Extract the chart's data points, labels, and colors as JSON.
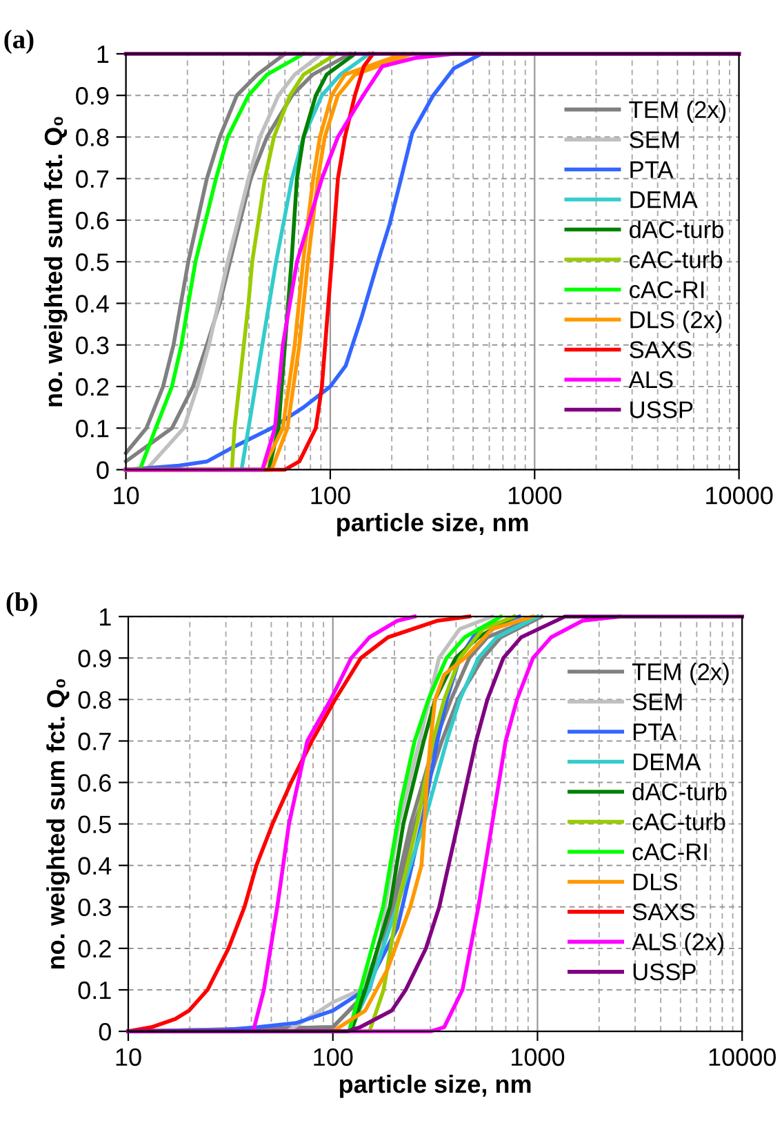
{
  "chart_data": [
    {
      "type": "line",
      "title": "(a)",
      "xlabel": "particle size, nm",
      "ylabel": "no. weighted sum fct. Q₀",
      "log": "x",
      "xlim": [
        10,
        10000
      ],
      "ylim": [
        0,
        1
      ],
      "xticks": [
        10,
        100,
        1000,
        10000
      ],
      "yticks": [
        0,
        0.1,
        0.2,
        0.3,
        0.4,
        0.5,
        0.6,
        0.7,
        0.8,
        0.9,
        1
      ],
      "grid": true,
      "legend": "right",
      "line_style": "solid",
      "marker": "none",
      "series": [
        {
          "name": "TEM (2x)",
          "color": "#808080",
          "x": [
            10,
            12.6,
            15.2,
            17.1,
            20.2,
            24.9,
            28.8,
            34.9,
            44,
            60
          ],
          "values": [
            0.04,
            0.1,
            0.2,
            0.3,
            0.5,
            0.7,
            0.8,
            0.9,
            0.95,
            1
          ]
        },
        {
          "color": "#808080",
          "x": [
            10,
            16.8,
            21.3,
            24.9,
            28.8,
            32.3,
            40.8,
            49,
            65,
            82,
            125
          ],
          "values": [
            0.02,
            0.1,
            0.2,
            0.3,
            0.4,
            0.5,
            0.7,
            0.8,
            0.9,
            0.95,
            1
          ]
        },
        {
          "name": "SEM",
          "color": "#c0c0c0",
          "x": [
            10,
            12.6,
            19.2,
            22.4,
            25.5,
            31.5,
            39.8,
            45.3,
            55.8,
            67,
            91
          ],
          "values": [
            0,
            0,
            0.1,
            0.2,
            0.3,
            0.5,
            0.7,
            0.8,
            0.9,
            0.95,
            1
          ]
        },
        {
          "name": "PTA",
          "color": "#3366ff",
          "x": [
            10,
            18.2,
            25,
            32.3,
            51.6,
            74,
            100,
            119,
            143,
            171,
            195,
            222,
            252,
            319,
            403,
            550
          ],
          "values": [
            0,
            0.01,
            0.02,
            0.05,
            0.1,
            0.15,
            0.2,
            0.25,
            0.37,
            0.5,
            0.59,
            0.7,
            0.81,
            0.9,
            0.965,
            1
          ]
        },
        {
          "name": "DEMA",
          "color": "#33cccc",
          "x": [
            10,
            36.8,
            39.8,
            43,
            46.5,
            54.3,
            65,
            74,
            91,
            112,
            155
          ],
          "values": [
            0,
            0,
            0.1,
            0.2,
            0.3,
            0.5,
            0.7,
            0.8,
            0.9,
            0.95,
            1
          ]
        },
        {
          "name": "dAC-turb",
          "color": "#008000",
          "x": [
            10,
            50,
            55.8,
            60,
            64.6,
            68.7,
            74,
            85,
            96,
            132
          ],
          "values": [
            0,
            0,
            0.1,
            0.3,
            0.5,
            0.7,
            0.8,
            0.9,
            0.95,
            1
          ]
        },
        {
          "name": "cAC-turb",
          "color": "#99cc00",
          "x": [
            10,
            33,
            34,
            39.8,
            41.5,
            47.9,
            53,
            63.5,
            74,
            107
          ],
          "values": [
            0,
            0,
            0.1,
            0.4,
            0.5,
            0.7,
            0.8,
            0.9,
            0.95,
            1
          ]
        },
        {
          "name": "cAC-RI",
          "color": "#00ff00",
          "x": [
            10,
            11.7,
            14,
            16.8,
            18.7,
            20.2,
            21.9,
            27.6,
            31.5,
            39.8,
            49,
            74
          ],
          "values": [
            0,
            0,
            0.1,
            0.2,
            0.3,
            0.4,
            0.5,
            0.7,
            0.8,
            0.9,
            0.95,
            1
          ]
        },
        {
          "name": "DLS (2x)",
          "color": "#ff9900",
          "x": [
            10,
            46.5,
            58.6,
            67,
            73.6,
            82.5,
            89,
            101.6,
            118,
            227
          ],
          "values": [
            0,
            0,
            0.1,
            0.3,
            0.5,
            0.7,
            0.8,
            0.9,
            0.95,
            1
          ]
        },
        {
          "color": "#ff9900",
          "x": [
            10,
            51.6,
            61.7,
            70.6,
            77.7,
            87,
            94,
            109,
            132,
            252
          ],
          "values": [
            0,
            0,
            0.1,
            0.3,
            0.5,
            0.7,
            0.8,
            0.9,
            0.95,
            1
          ]
        },
        {
          "name": "SAXS",
          "color": "#ff0000",
          "x": [
            10,
            60,
            70.6,
            85,
            91,
            101.6,
            109,
            118,
            132,
            146,
            162
          ],
          "values": [
            0,
            0,
            0.02,
            0.1,
            0.2,
            0.5,
            0.7,
            0.8,
            0.9,
            0.97,
            1
          ]
        },
        {
          "name": "ALS",
          "color": "#ff00ff",
          "x": [
            10,
            46.5,
            53.6,
            58.6,
            68.7,
            91,
            109,
            145,
            180,
            260,
            400,
            10000
          ],
          "values": [
            0,
            0,
            0.1,
            0.3,
            0.5,
            0.7,
            0.8,
            0.9,
            0.97,
            0.99,
            1,
            1
          ]
        },
        {
          "name": "USSP",
          "color": "#800080",
          "x": [
            10,
            10000
          ],
          "values": [
            1,
            1
          ]
        }
      ]
    },
    {
      "type": "line",
      "title": "(b)",
      "xlabel": "particle size, nm",
      "ylabel": "no. weighted sum fct. Q₀",
      "log": "x",
      "xlim": [
        10,
        10000
      ],
      "ylim": [
        0,
        1
      ],
      "xticks": [
        10,
        100,
        1000,
        10000
      ],
      "yticks": [
        0,
        0.1,
        0.2,
        0.3,
        0.4,
        0.5,
        0.6,
        0.7,
        0.8,
        0.9,
        1
      ],
      "grid": true,
      "legend": "right",
      "line_style": "solid",
      "marker": "none",
      "series": [
        {
          "name": "TEM (2x)",
          "color": "#808080",
          "x": [
            10,
            100,
            151,
            197,
            251,
            341,
            408,
            541,
            662,
            1047
          ],
          "values": [
            0,
            0.01,
            0.1,
            0.3,
            0.5,
            0.7,
            0.8,
            0.9,
            0.95,
            1
          ]
        },
        {
          "color": "#808080",
          "x": [
            10,
            100,
            150,
            195,
            240,
            316,
            378,
            464,
            569,
            1000
          ],
          "values": [
            0,
            0.01,
            0.1,
            0.3,
            0.5,
            0.7,
            0.8,
            0.9,
            0.95,
            1
          ]
        },
        {
          "name": "SEM",
          "color": "#c0c0c0",
          "x": [
            10,
            60,
            100,
            137,
            169,
            180,
            210,
            265,
            330,
            417,
            600
          ],
          "values": [
            0,
            0,
            0.07,
            0.1,
            0.2,
            0.3,
            0.5,
            0.7,
            0.9,
            0.97,
            1
          ]
        },
        {
          "name": "PTA",
          "color": "#3366ff",
          "x": [
            10,
            28.6,
            43,
            66,
            100,
            144,
            207,
            271,
            324,
            360,
            417,
            514,
            815
          ],
          "values": [
            0,
            0.003,
            0.01,
            0.02,
            0.05,
            0.1,
            0.25,
            0.5,
            0.7,
            0.8,
            0.9,
            0.97,
            1
          ]
        },
        {
          "name": "DEMA",
          "color": "#33cccc",
          "x": [
            10,
            120,
            150,
            205,
            278,
            360,
            417,
            514,
            631,
            1000
          ],
          "values": [
            0,
            0,
            0.1,
            0.3,
            0.5,
            0.7,
            0.8,
            0.9,
            0.95,
            1
          ]
        },
        {
          "name": "dAC-turb",
          "color": "#008000",
          "x": [
            10,
            123,
            144,
            190,
            221,
            278,
            316,
            398,
            514,
            771
          ],
          "values": [
            0,
            0,
            0.1,
            0.3,
            0.5,
            0.7,
            0.8,
            0.9,
            0.95,
            1
          ]
        },
        {
          "name": "cAC-turb",
          "color": "#99cc00",
          "x": [
            10,
            151,
            177,
            207,
            258,
            308,
            350,
            417,
            541,
            771
          ],
          "values": [
            0,
            0,
            0.1,
            0.3,
            0.5,
            0.7,
            0.8,
            0.9,
            0.97,
            1
          ]
        },
        {
          "name": "cAC-RI",
          "color": "#00ff00",
          "x": [
            10,
            120,
            176,
            215,
            251,
            293,
            359,
            441,
            662
          ],
          "values": [
            0,
            0,
            0.3,
            0.55,
            0.7,
            0.8,
            0.9,
            0.95,
            1
          ]
        },
        {
          "name": "DLS",
          "color": "#ff9900",
          "x": [
            10,
            100,
            144,
            185,
            239,
            271,
            280,
            288,
            300,
            316,
            350,
            441,
            600,
            950
          ],
          "values": [
            0,
            0,
            0.05,
            0.15,
            0.3,
            0.4,
            0.5,
            0.6,
            0.7,
            0.8,
            0.86,
            0.9,
            0.97,
            1
          ]
        },
        {
          "name": "SAXS",
          "color": "#ff0000",
          "x": [
            10,
            13,
            17,
            19.8,
            24.4,
            30.9,
            37,
            42.3,
            50.7,
            62.5,
            79,
            102.6,
            137,
            186,
            325,
            464
          ],
          "values": [
            0,
            0.01,
            0.03,
            0.05,
            0.1,
            0.2,
            0.3,
            0.4,
            0.5,
            0.6,
            0.7,
            0.8,
            0.9,
            0.95,
            0.99,
            1
          ]
        },
        {
          "name": "ALS (2x)",
          "color": "#ff00ff",
          "x": [
            10,
            40.8,
            46,
            53.5,
            61,
            75,
            97.6,
            123,
            151,
            207,
            251
          ],
          "values": [
            0,
            0,
            0.1,
            0.3,
            0.5,
            0.7,
            0.8,
            0.9,
            0.95,
            0.99,
            1
          ]
        },
        {
          "color": "#ff00ff",
          "x": [
            10,
            300,
            350,
            430,
            514,
            600,
            699,
            794,
            950,
            1166,
            1660,
            2512
          ],
          "values": [
            0,
            0,
            0.01,
            0.1,
            0.3,
            0.5,
            0.7,
            0.8,
            0.9,
            0.95,
            0.99,
            1
          ]
        },
        {
          "name": "USSP",
          "color": "#800080",
          "x": [
            10,
            117,
            136,
            194,
            227,
            285,
            331,
            408,
            501,
            569,
            681,
            832,
            1360,
            10000
          ],
          "values": [
            0,
            0,
            0.01,
            0.05,
            0.1,
            0.2,
            0.3,
            0.5,
            0.7,
            0.8,
            0.9,
            0.95,
            1,
            1
          ]
        }
      ]
    }
  ]
}
